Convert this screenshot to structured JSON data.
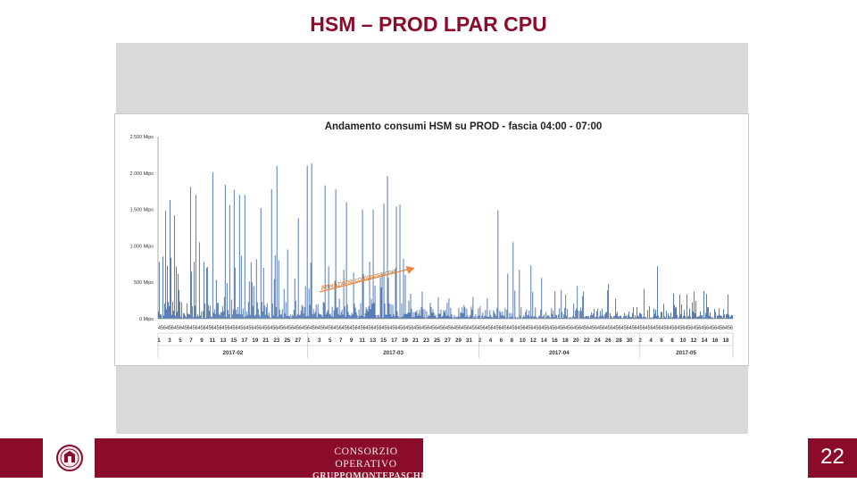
{
  "slide": {
    "title": "HSM – PROD LPAR CPU",
    "page_number": "22",
    "logo": {
      "line1": "CONSORZIO OPERATIVO",
      "line2": "GRUPPOMONTEPASCHI"
    }
  },
  "colors": {
    "brand": "#8b0c2a",
    "bars": "#3c67a7",
    "annotation": "#e6873c"
  },
  "chart_data": {
    "type": "bar",
    "title": "Andamento consumi HSM su PROD - fascia 04:00 - 07:00",
    "ylim": [
      0,
      2500
    ],
    "y_ticks": [
      {
        "value": 0,
        "label": "0 Mips"
      },
      {
        "value": 500,
        "label": "500 Mips"
      },
      {
        "value": 1000,
        "label": "1.000 Mips"
      },
      {
        "value": 1500,
        "label": "1.500 Mips"
      },
      {
        "value": 2000,
        "label": "2.000 Mips"
      },
      {
        "value": 2500,
        "label": "2.500 Mips"
      }
    ],
    "hour_labels_pattern": "456",
    "day_labels": [
      {
        "bar": 1,
        "label": "1"
      },
      {
        "bar": 13,
        "label": "3"
      },
      {
        "bar": 25,
        "label": "5"
      },
      {
        "bar": 37,
        "label": "7"
      },
      {
        "bar": 49,
        "label": "9"
      },
      {
        "bar": 61,
        "label": "11"
      },
      {
        "bar": 73,
        "label": "13"
      },
      {
        "bar": 85,
        "label": "15"
      },
      {
        "bar": 97,
        "label": "17"
      },
      {
        "bar": 109,
        "label": "19"
      },
      {
        "bar": 121,
        "label": "21"
      },
      {
        "bar": 133,
        "label": "23"
      },
      {
        "bar": 145,
        "label": "25"
      },
      {
        "bar": 157,
        "label": "27"
      },
      {
        "bar": 169,
        "label": "1"
      },
      {
        "bar": 181,
        "label": "3"
      },
      {
        "bar": 193,
        "label": "5"
      },
      {
        "bar": 205,
        "label": "7"
      },
      {
        "bar": 217,
        "label": "9"
      },
      {
        "bar": 229,
        "label": "11"
      },
      {
        "bar": 241,
        "label": "13"
      },
      {
        "bar": 253,
        "label": "15"
      },
      {
        "bar": 265,
        "label": "17"
      },
      {
        "bar": 277,
        "label": "19"
      },
      {
        "bar": 289,
        "label": "21"
      },
      {
        "bar": 301,
        "label": "23"
      },
      {
        "bar": 313,
        "label": "25"
      },
      {
        "bar": 325,
        "label": "27"
      },
      {
        "bar": 337,
        "label": "29"
      },
      {
        "bar": 349,
        "label": "31"
      },
      {
        "bar": 361,
        "label": "2"
      },
      {
        "bar": 373,
        "label": "4"
      },
      {
        "bar": 385,
        "label": "6"
      },
      {
        "bar": 397,
        "label": "8"
      },
      {
        "bar": 409,
        "label": "10"
      },
      {
        "bar": 421,
        "label": "12"
      },
      {
        "bar": 433,
        "label": "14"
      },
      {
        "bar": 445,
        "label": "16"
      },
      {
        "bar": 457,
        "label": "18"
      },
      {
        "bar": 469,
        "label": "20"
      },
      {
        "bar": 481,
        "label": "22"
      },
      {
        "bar": 493,
        "label": "24"
      },
      {
        "bar": 505,
        "label": "26"
      },
      {
        "bar": 517,
        "label": "28"
      },
      {
        "bar": 529,
        "label": "30"
      },
      {
        "bar": 541,
        "label": "2"
      },
      {
        "bar": 553,
        "label": "4"
      },
      {
        "bar": 565,
        "label": "6"
      },
      {
        "bar": 577,
        "label": "8"
      },
      {
        "bar": 589,
        "label": "10"
      },
      {
        "bar": 601,
        "label": "12"
      },
      {
        "bar": 613,
        "label": "14"
      },
      {
        "bar": 625,
        "label": "16"
      },
      {
        "bar": 637,
        "label": "18"
      }
    ],
    "month_groups": [
      {
        "label": "2017-02",
        "start_bar": 0,
        "end_bar": 168
      },
      {
        "label": "2017-03",
        "start_bar": 168,
        "end_bar": 360
      },
      {
        "bar_label_note": "",
        "label": "2017-04",
        "start_bar": 360,
        "end_bar": 540
      },
      {
        "label": "2017-05",
        "start_bar": 540,
        "end_bar": 645
      }
    ],
    "bar_count": 645,
    "peaks": [
      {
        "bar": 1,
        "value": 780
      },
      {
        "bar": 8,
        "value": 1480
      },
      {
        "bar": 13,
        "value": 1630
      },
      {
        "bar": 18,
        "value": 1420
      },
      {
        "bar": 36,
        "value": 1810
      },
      {
        "bar": 42,
        "value": 1700
      },
      {
        "bar": 46,
        "value": 1050
      },
      {
        "bar": 51,
        "value": 780
      },
      {
        "bar": 61,
        "value": 2010
      },
      {
        "bar": 75,
        "value": 1840
      },
      {
        "bar": 80,
        "value": 1560
      },
      {
        "bar": 85,
        "value": 1770
      },
      {
        "bar": 91,
        "value": 1700
      },
      {
        "bar": 97,
        "value": 1700
      },
      {
        "bar": 115,
        "value": 1520
      },
      {
        "bar": 127,
        "value": 1780
      },
      {
        "bar": 133,
        "value": 2100
      },
      {
        "bar": 145,
        "value": 950
      },
      {
        "bar": 157,
        "value": 1380
      },
      {
        "bar": 167,
        "value": 2100
      },
      {
        "bar": 172,
        "value": 2130
      },
      {
        "bar": 187,
        "value": 1830
      },
      {
        "bar": 199,
        "value": 1780
      },
      {
        "bar": 211,
        "value": 1600
      },
      {
        "bar": 229,
        "value": 1500
      },
      {
        "bar": 241,
        "value": 1500
      },
      {
        "bar": 253,
        "value": 1580
      },
      {
        "bar": 257,
        "value": 1960
      },
      {
        "bar": 267,
        "value": 1540
      },
      {
        "bar": 271,
        "value": 1570
      },
      {
        "bar": 381,
        "value": 1490
      },
      {
        "bar": 392,
        "value": 620
      },
      {
        "bar": 398,
        "value": 1050
      },
      {
        "bar": 405,
        "value": 670
      },
      {
        "bar": 418,
        "value": 730
      },
      {
        "bar": 430,
        "value": 560
      },
      {
        "bar": 470,
        "value": 450
      },
      {
        "bar": 505,
        "value": 480
      },
      {
        "bar": 545,
        "value": 410
      },
      {
        "bar": 560,
        "value": 720
      },
      {
        "bar": 585,
        "value": 330
      },
      {
        "bar": 601,
        "value": 370
      },
      {
        "bar": 615,
        "value": 340
      }
    ],
    "annotation": {
      "text": "Attivazione compressione",
      "bar": 271
    }
  }
}
